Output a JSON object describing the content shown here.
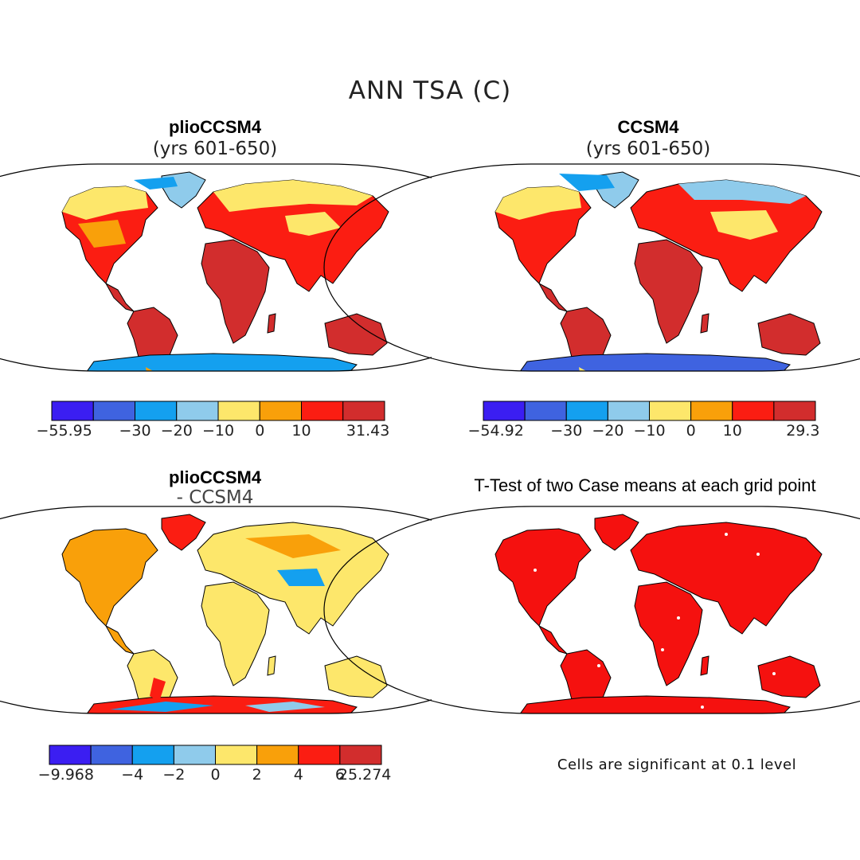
{
  "title": "ANN TSA (C)",
  "colors": {
    "bins": [
      "#3b1ef2",
      "#3f63e0",
      "#14a0ef",
      "#8fcbeb",
      "#fde76b",
      "#f9a00a",
      "#fb1d12",
      "#d22d2d"
    ],
    "sig_red": "#f5110f",
    "outline": "#000000"
  },
  "panels": [
    {
      "id": "plio",
      "title": "plioCCSM4",
      "subtitle": "(yrs 601-650)",
      "colorbar": {
        "labels": [
          "-55.95",
          "-30",
          "-20",
          "-10",
          "0",
          "10",
          "31.43"
        ]
      },
      "chart_data": {
        "type": "heatmap",
        "field": "ANN TSA (C)",
        "case": "plioCCSM4",
        "years": "601-650",
        "min": -55.95,
        "max": 31.43,
        "levels": [
          -30,
          -20,
          -10,
          0,
          10
        ]
      }
    },
    {
      "id": "ccsm4",
      "title": "CCSM4",
      "subtitle": "(yrs 601-650)",
      "colorbar": {
        "labels": [
          "-54.92",
          "-30",
          "-20",
          "-10",
          "0",
          "10",
          "29.3"
        ]
      },
      "chart_data": {
        "type": "heatmap",
        "field": "ANN TSA (C)",
        "case": "CCSM4",
        "years": "601-650",
        "min": -54.92,
        "max": 29.3,
        "levels": [
          -30,
          -20,
          -10,
          0,
          10
        ]
      }
    },
    {
      "id": "diff",
      "title": "plioCCSM4",
      "subtitle": "- CCSM4",
      "colorbar": {
        "labels": [
          "-9.968",
          "-4",
          "-2",
          "0",
          "2",
          "4",
          "6",
          "25.274"
        ]
      },
      "chart_data": {
        "type": "heatmap",
        "field": "ANN TSA (C)",
        "case": "plioCCSM4 - CCSM4",
        "min": -9.968,
        "max": 25.274,
        "levels": [
          -4,
          -2,
          0,
          2,
          4,
          6
        ]
      }
    },
    {
      "id": "ttest",
      "title": "T-Test of two Case means at each grid point",
      "note": "Cells are significant at 0.1 level",
      "chart_data": {
        "type": "heatmap",
        "field": "significance",
        "level": 0.1
      }
    }
  ]
}
